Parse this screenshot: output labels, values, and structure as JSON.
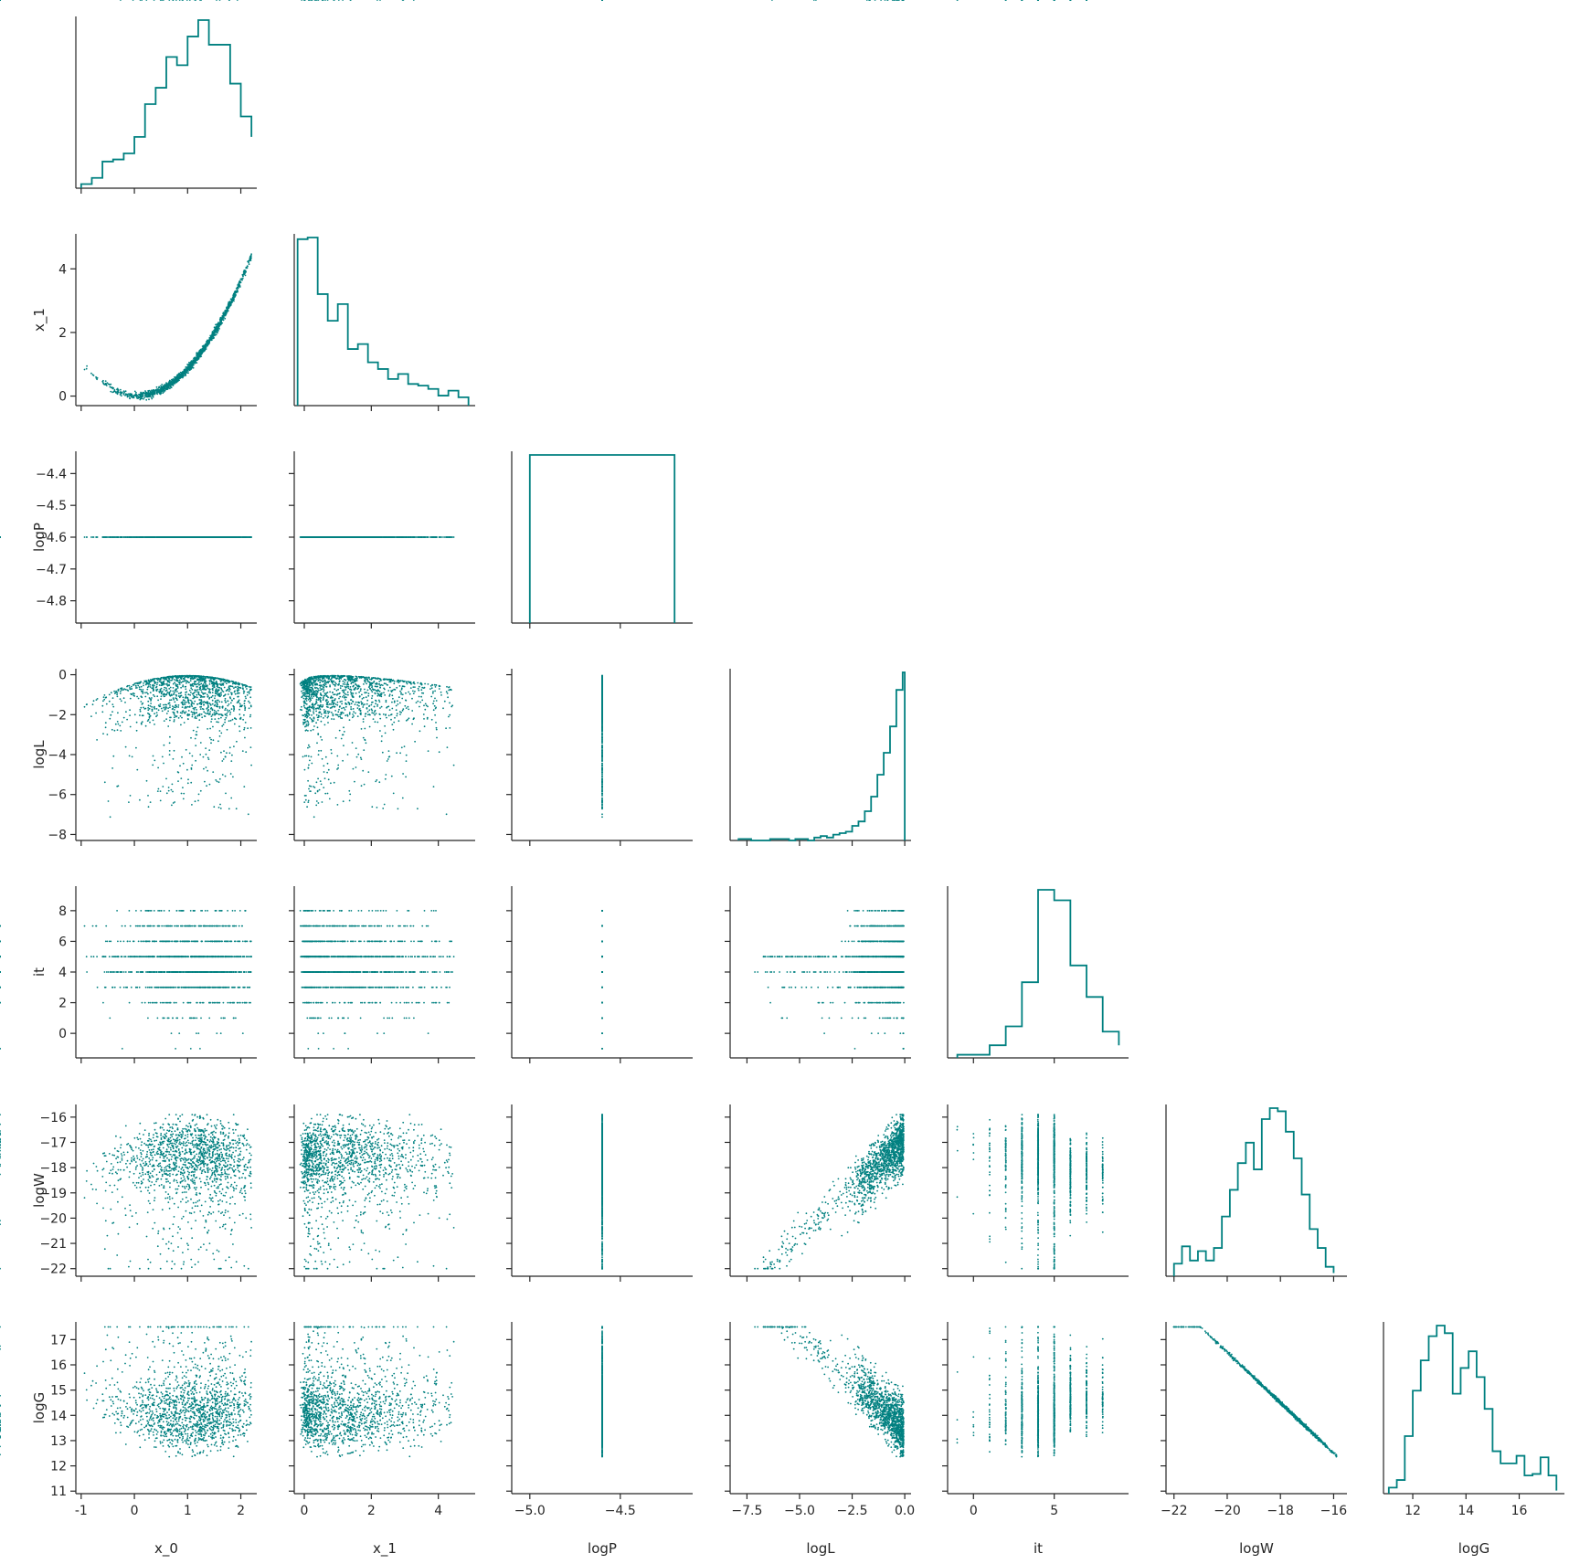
{
  "chart_data": {
    "type": "pairplot",
    "title": "",
    "variables": [
      "x_0",
      "x_1",
      "logP",
      "logL",
      "it",
      "logW",
      "logG"
    ],
    "color": "#008080",
    "layout": "lower-triangle; histograms on diagonal, scatter below",
    "axes": {
      "x_0": {
        "range": [
          -1.1,
          2.3
        ],
        "ticks": [
          -1,
          0,
          1,
          2
        ],
        "tick_labels": [
          "-1",
          "0",
          "1",
          "2"
        ]
      },
      "x_1": {
        "range": [
          -0.3,
          5.1
        ],
        "ticks": [
          0,
          2,
          4
        ],
        "tick_labels": [
          "0",
          "2",
          "4"
        ]
      },
      "logP": {
        "range": [
          -4.87,
          -4.33
        ],
        "ticks": [
          -5.0,
          -4.5
        ],
        "tick_labels": [
          "−5.0",
          "−4.5"
        ],
        "y_ticks": [
          -4.4,
          -4.5,
          -4.6,
          -4.7,
          -4.8
        ],
        "y_tick_labels": [
          "−4.4",
          "−4.5",
          "−4.6",
          "−4.7",
          "−4.8"
        ],
        "x_range": [
          -5.1,
          -4.1
        ]
      },
      "logL": {
        "range": [
          -8.3,
          0.3
        ],
        "ticks": [
          -7.5,
          -5.0,
          -2.5,
          0.0
        ],
        "tick_labels": [
          "−7.5",
          "−5.0",
          "−2.5",
          "0.0"
        ],
        "y_ticks": [
          0,
          -2,
          -4,
          -6,
          -8
        ],
        "y_tick_labels": [
          "0",
          "−2",
          "−4",
          "−6",
          "−8"
        ]
      },
      "it": {
        "range": [
          -1.6,
          9.6
        ],
        "ticks": [
          0,
          5
        ],
        "tick_labels": [
          "0",
          "5"
        ],
        "y_ticks": [
          0,
          2,
          4,
          6,
          8
        ],
        "y_tick_labels": [
          "0",
          "2",
          "4",
          "6",
          "8"
        ]
      },
      "logW": {
        "range": [
          -22.3,
          -15.5
        ],
        "ticks": [
          -22,
          -20,
          -18,
          -16
        ],
        "tick_labels": [
          "−22",
          "−20",
          "−18",
          "−16"
        ],
        "y_ticks": [
          -16,
          -17,
          -18,
          -19,
          -20,
          -21,
          -22
        ],
        "y_tick_labels": [
          "−16",
          "−17",
          "−18",
          "−19",
          "−20",
          "−21",
          "−22"
        ]
      },
      "logG": {
        "range": [
          10.9,
          17.7
        ],
        "ticks": [
          12,
          14,
          16
        ],
        "tick_labels": [
          "12",
          "14",
          "16"
        ],
        "y_ticks": [
          11,
          12,
          13,
          14,
          15,
          16,
          17
        ],
        "y_tick_labels": [
          "11",
          "12",
          "13",
          "14",
          "15",
          "16",
          "17"
        ]
      }
    },
    "histograms": {
      "x_0": {
        "bins": [
          -1.0,
          -0.8,
          -0.6,
          -0.4,
          -0.2,
          0.0,
          0.2,
          0.4,
          0.6,
          0.8,
          1.0,
          1.2,
          1.4,
          1.6,
          1.8,
          2.0,
          2.2
        ],
        "heights": [
          2,
          5,
          13,
          14,
          17,
          25,
          41,
          49,
          64,
          60,
          74,
          82,
          70,
          70,
          51,
          35,
          25
        ]
      },
      "x_1": {
        "bins": [
          -0.2,
          0.1,
          0.4,
          0.7,
          1.0,
          1.3,
          1.6,
          1.9,
          2.2,
          2.5,
          2.8,
          3.1,
          3.4,
          3.7,
          4.0,
          4.3,
          4.6,
          4.9
        ],
        "heights": [
          100,
          101,
          67,
          51,
          61,
          34,
          37,
          26,
          22,
          16,
          19,
          13,
          12,
          10,
          6,
          9,
          5
        ]
      },
      "logP": {
        "bins": [
          -5.0,
          -4.2
        ],
        "heights": [
          1
        ]
      },
      "logL": {
        "bins": [
          -7.9,
          -7.6,
          -7.3,
          -7.0,
          -6.7,
          -6.4,
          -6.1,
          -5.8,
          -5.5,
          -5.2,
          -4.9,
          -4.6,
          -4.3,
          -4.0,
          -3.7,
          -3.4,
          -3.1,
          -2.8,
          -2.5,
          -2.2,
          -1.9,
          -1.6,
          -1.3,
          -1.0,
          -0.7,
          -0.4,
          -0.1,
          0.0
        ],
        "heights": [
          1,
          1,
          0,
          0,
          0,
          1,
          1,
          1,
          0,
          1,
          1,
          0,
          2,
          3,
          2,
          4,
          5,
          6,
          10,
          13,
          20,
          30,
          45,
          60,
          78,
          103,
          115
        ]
      },
      "it": {
        "bins": [
          -1,
          0,
          1,
          2,
          3,
          4,
          5,
          6,
          7,
          8,
          9
        ],
        "heights": [
          3,
          3,
          12,
          30,
          72,
          160,
          150,
          88,
          58,
          25,
          12
        ]
      },
      "logW": {
        "bins": [
          -22.0,
          -21.7,
          -21.4,
          -21.1,
          -20.8,
          -20.5,
          -20.2,
          -19.9,
          -19.6,
          -19.3,
          -19.0,
          -18.7,
          -18.4,
          -18.1,
          -17.8,
          -17.5,
          -17.2,
          -16.9,
          -16.6,
          -16.3,
          -16.0
        ],
        "heights": [
          8,
          19,
          10,
          16,
          10,
          18,
          38,
          55,
          72,
          85,
          68,
          100,
          107,
          105,
          92,
          75,
          52,
          30,
          18,
          6,
          2
        ]
      },
      "logG": {
        "bins": [
          11.1,
          11.4,
          11.7,
          12.0,
          12.3,
          12.6,
          12.9,
          13.2,
          13.5,
          13.8,
          14.1,
          14.4,
          14.7,
          15.0,
          15.3,
          15.6,
          15.9,
          16.2,
          16.5,
          16.8,
          17.1,
          17.4
        ],
        "heights": [
          4,
          9,
          38,
          68,
          88,
          104,
          111,
          106,
          66,
          83,
          94,
          77,
          56,
          28,
          20,
          20,
          25,
          12,
          13,
          24,
          12,
          2
        ]
      }
    }
  }
}
